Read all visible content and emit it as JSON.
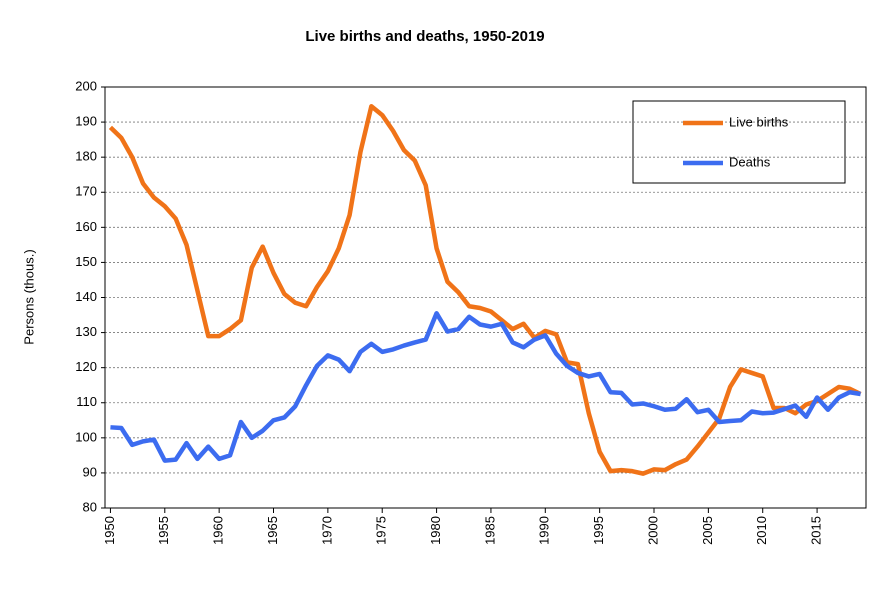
{
  "chart_data": {
    "type": "line",
    "title": "Live births and deaths, 1950-2019",
    "y_label": "Persons (thous.)",
    "x": [
      1950,
      1951,
      1952,
      1953,
      1954,
      1955,
      1956,
      1957,
      1958,
      1959,
      1960,
      1961,
      1962,
      1963,
      1964,
      1965,
      1966,
      1967,
      1968,
      1969,
      1970,
      1971,
      1972,
      1973,
      1974,
      1975,
      1976,
      1977,
      1978,
      1979,
      1980,
      1981,
      1982,
      1983,
      1984,
      1985,
      1986,
      1987,
      1988,
      1989,
      1990,
      1991,
      1992,
      1993,
      1994,
      1995,
      1996,
      1997,
      1998,
      1999,
      2000,
      2001,
      2002,
      2003,
      2004,
      2005,
      2006,
      2007,
      2008,
      2009,
      2010,
      2011,
      2012,
      2013,
      2014,
      2015,
      2016,
      2017,
      2018,
      2019
    ],
    "series": [
      {
        "name": "Live births",
        "color": "#f07318",
        "values": [
          188.5,
          185.5,
          180,
          172.5,
          168.5,
          166,
          162.5,
          155,
          142,
          129,
          129,
          131,
          133.5,
          148.5,
          154.5,
          147,
          141,
          138.5,
          137.5,
          143,
          147.5,
          154,
          163.5,
          181.5,
          194.5,
          192,
          187.5,
          182,
          179,
          172,
          154,
          144.5,
          141.5,
          137.5,
          137,
          136,
          133.5,
          131,
          132.5,
          128.5,
          130.5,
          129.5,
          121.5,
          121,
          107,
          96,
          90.5,
          90.8,
          90.5,
          89.8,
          91,
          90.8,
          92.5,
          93.8,
          97.5,
          101.5,
          105.5,
          114.5,
          119.5,
          118.5,
          117.5,
          108.5,
          108.5,
          107,
          109.5,
          110.5,
          112.5,
          114.5,
          114,
          112.5
        ]
      },
      {
        "name": "Deaths",
        "color": "#3c6cf0",
        "values": [
          103,
          102.8,
          98,
          99,
          99.5,
          93.5,
          93.8,
          98.5,
          94,
          97.5,
          94,
          95,
          104.5,
          100,
          102,
          105,
          105.8,
          109,
          115,
          120.5,
          123.5,
          122.3,
          119,
          124.5,
          126.8,
          124.5,
          125.2,
          126.3,
          127.2,
          128,
          135.5,
          130.3,
          131,
          134.5,
          132.3,
          131.7,
          132.5,
          127.2,
          125.8,
          128,
          129.2,
          124,
          120.5,
          118.5,
          117.5,
          118.2,
          113,
          112.8,
          109.5,
          109.8,
          109,
          108,
          108.3,
          111,
          107.3,
          108,
          104.5,
          104.8,
          105,
          107.5,
          107,
          107.2,
          108.2,
          109.2,
          106,
          111.5,
          108,
          111.5,
          113,
          112.5
        ]
      }
    ],
    "xlim": [
      1949.5,
      2019.5
    ],
    "xticks": [
      1950,
      1955,
      1960,
      1965,
      1970,
      1975,
      1980,
      1985,
      1990,
      1995,
      2000,
      2005,
      2010,
      2015
    ],
    "ylim": [
      80,
      200
    ],
    "yticks": [
      80,
      90,
      100,
      110,
      120,
      130,
      140,
      150,
      160,
      170,
      180,
      190,
      200
    ],
    "grid": true
  }
}
